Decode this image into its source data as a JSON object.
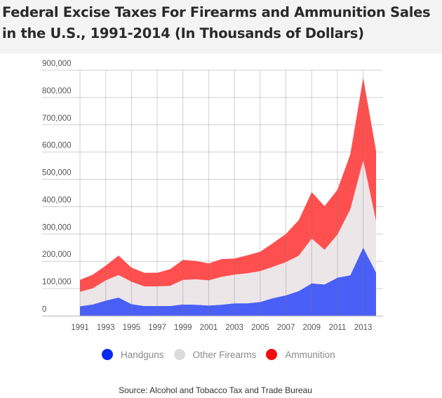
{
  "header": {
    "title": "Federal Excise Taxes For Firearms and Ammunition Sales in the U.S., 1991-2014 (In Thousands of Dollars)"
  },
  "chart_data": {
    "type": "area",
    "stacked": true,
    "title": "Federal Excise Taxes For Firearms and Ammunition Sales in the U.S., 1991-2014 (In Thousands of Dollars)",
    "xlabel": "",
    "ylabel": "",
    "x": [
      1991,
      1992,
      1993,
      1994,
      1995,
      1996,
      1997,
      1998,
      1999,
      2000,
      2001,
      2002,
      2003,
      2004,
      2005,
      2006,
      2007,
      2008,
      2009,
      2010,
      2011,
      2012,
      2013,
      2014
    ],
    "x_tick_labels": [
      "1991",
      "1993",
      "1995",
      "1997",
      "1999",
      "2001",
      "2003",
      "2005",
      "2007",
      "2009",
      "2011",
      "2013"
    ],
    "y_tick_labels": [
      "0",
      "100,000",
      "200,000",
      "300,000",
      "400,000",
      "500,000",
      "600,000",
      "700,000",
      "800,000",
      "900,000"
    ],
    "y_ticks": [
      0,
      100000,
      200000,
      300000,
      400000,
      500000,
      600000,
      700000,
      800000,
      900000
    ],
    "ylim": [
      0,
      900000
    ],
    "grid": true,
    "legend_position": "bottom",
    "series": [
      {
        "name": "Handguns",
        "color": "#4a5ff5",
        "values": [
          35000,
          42000,
          56000,
          67000,
          43000,
          36000,
          36000,
          36000,
          42000,
          41000,
          38000,
          41000,
          46000,
          46000,
          51000,
          65000,
          75000,
          91000,
          119000,
          115000,
          140000,
          149000,
          250000,
          159000
        ]
      },
      {
        "name": "Other Firearms",
        "color": "#ece6e8",
        "values": [
          53000,
          59000,
          74000,
          83000,
          82000,
          72000,
          72000,
          74000,
          90000,
          93000,
          92000,
          102000,
          105000,
          110000,
          113000,
          115000,
          122000,
          130000,
          164000,
          127000,
          158000,
          241000,
          320000,
          189000
        ]
      },
      {
        "name": "Ammunition",
        "color": "#ff4f4f",
        "values": [
          44000,
          50000,
          54000,
          71000,
          52000,
          50000,
          50000,
          61000,
          73000,
          67000,
          62000,
          65000,
          59000,
          66000,
          71000,
          87000,
          103000,
          130000,
          170000,
          160000,
          164000,
          202000,
          302000,
          257000
        ]
      }
    ]
  },
  "legend": {
    "items": [
      {
        "label": "Handguns",
        "color": "#0a28f0"
      },
      {
        "label": "Other Firearms",
        "color": "#dcdcdc"
      },
      {
        "label": "Ammunition",
        "color": "#f01010"
      }
    ]
  },
  "footer": {
    "source": "Source: Alcohol and Tobacco Tax and Trade Bureau"
  }
}
